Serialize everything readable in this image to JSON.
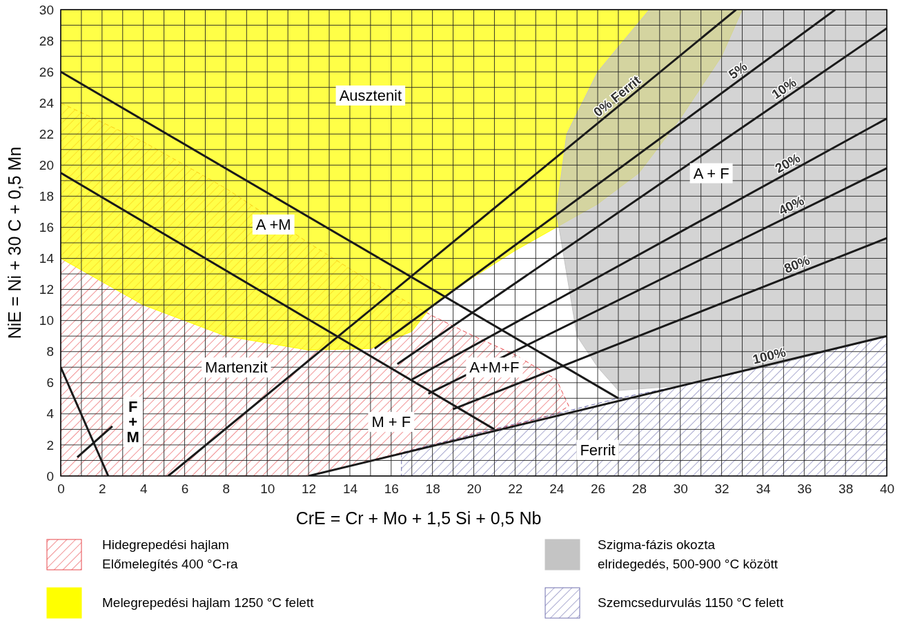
{
  "chart_data": {
    "type": "line",
    "xlabel": "CrE = Cr + Mo + 1,5 Si + 0,5 Nb",
    "ylabel": "NiE = Ni + 30 C + 0,5 Mn",
    "xlim": [
      0,
      40
    ],
    "ylim": [
      0,
      30
    ],
    "xticks": [
      0,
      {
        "value": 1,
        "label": null
      },
      2,
      {
        "value": 3,
        "label": null
      },
      4,
      {
        "value": 5,
        "label": null
      },
      6,
      {
        "value": 7,
        "label": null
      },
      8,
      {
        "value": 9,
        "label": null
      },
      10,
      {
        "value": 11,
        "label": null
      },
      12,
      {
        "value": 13,
        "label": null
      },
      14,
      {
        "value": 15,
        "label": null
      },
      16,
      {
        "value": 17,
        "label": null
      },
      18,
      {
        "value": 19,
        "label": null
      },
      20,
      {
        "value": 21,
        "label": null
      },
      22,
      {
        "value": 23,
        "label": null
      },
      24,
      {
        "value": 25,
        "label": null
      },
      26,
      {
        "value": 27,
        "label": null
      },
      28,
      {
        "value": 29,
        "label": null
      },
      30,
      {
        "value": 31,
        "label": null
      },
      32,
      {
        "value": 33,
        "label": null
      },
      34,
      {
        "value": 35,
        "label": null
      },
      36,
      {
        "value": 37,
        "label": null
      },
      38,
      {
        "value": 39,
        "label": null
      },
      40
    ],
    "yticks": [
      0,
      {
        "value": 1,
        "label": null
      },
      2,
      {
        "value": 3,
        "label": null
      },
      4,
      {
        "value": 5,
        "label": null
      },
      6,
      {
        "value": 7,
        "label": null
      },
      8,
      {
        "value": 9,
        "label": null
      },
      10,
      {
        "value": 11,
        "label": null
      },
      12,
      {
        "value": 13,
        "label": null
      },
      14,
      {
        "value": 15,
        "label": null
      },
      16,
      {
        "value": 17,
        "label": null
      },
      18,
      {
        "value": 19,
        "label": null
      },
      20,
      {
        "value": 21,
        "label": null
      },
      22,
      {
        "value": 23,
        "label": null
      },
      24,
      {
        "value": 25,
        "label": null
      },
      26,
      {
        "value": 27,
        "label": null
      },
      28,
      {
        "value": 29,
        "label": null
      },
      30
    ],
    "grid": true,
    "legend": "bottom",
    "series": [
      {
        "type": "area",
        "name": "Hidegrepedési hajlam\nElőmelegítés 400 °C-ra",
        "color": "#e8474b",
        "line_style": "dashed",
        "x": [
          0,
          12,
          15,
          18,
          20,
          22,
          24,
          24.6,
          24,
          22,
          20,
          18,
          15,
          12,
          8,
          4,
          0
        ],
        "values": [
          0,
          0,
          1,
          2,
          2.7,
          3.3,
          4,
          4.5,
          6.2,
          7.8,
          9,
          10.3,
          12.5,
          15,
          18.5,
          21.5,
          24
        ]
      },
      {
        "type": "area",
        "name": "Melegrepedési hajlam 1250 °C felett",
        "color": "#ffff00",
        "x": [
          0,
          4,
          8,
          12,
          15,
          17,
          18,
          20,
          22,
          24,
          26,
          28,
          30,
          32,
          33,
          0
        ],
        "values": [
          14,
          11,
          9,
          8.1,
          8.2,
          9.3,
          11,
          12.8,
          14.5,
          16,
          17.5,
          19.5,
          23,
          27,
          30,
          30
        ]
      },
      {
        "type": "area",
        "name": "Szigma-fázis okozta\nelridegedés, 500-900 °C között",
        "color": "#c4c4c4",
        "x": [
          28.5,
          26,
          24.5,
          24,
          25,
          26,
          27,
          30,
          35,
          40,
          40
        ],
        "values": [
          30,
          26,
          22,
          17,
          9,
          7,
          5.5,
          5.8,
          7.3,
          9,
          30
        ]
      },
      {
        "type": "area",
        "name": "Szemcsedurvulás 1150 °C felett",
        "color": "#7070b0",
        "line_style": "dashed",
        "x": [
          16.5,
          40,
          40,
          35,
          30,
          27,
          24,
          20,
          16.5
        ],
        "values": [
          0,
          0,
          9,
          7.3,
          5.8,
          5,
          4,
          2.7,
          1.5
        ]
      },
      {
        "color": "#1a1a1a",
        "x": [
          0,
          27
        ],
        "values": [
          26,
          5
        ]
      },
      {
        "color": "#1a1a1a",
        "x": [
          0,
          21
        ],
        "values": [
          19.5,
          3
        ]
      },
      {
        "color": "#1a1a1a",
        "x": [
          0,
          2.3
        ],
        "values": [
          7,
          0
        ]
      },
      {
        "color": "#1a1a1a",
        "x": [
          0.8,
          2.5
        ],
        "values": [
          1.2,
          3.2
        ]
      },
      {
        "name": "0% Ferrit",
        "color": "#1a1a1a",
        "x": [
          5.2,
          32.7
        ],
        "values": [
          0,
          30
        ]
      },
      {
        "name": "5%",
        "color": "#1a1a1a",
        "x": [
          15.2,
          37.5
        ],
        "values": [
          8.2,
          30
        ]
      },
      {
        "name": "10%",
        "color": "#1a1a1a",
        "x": [
          16.3,
          40
        ],
        "values": [
          7.2,
          28.8
        ]
      },
      {
        "name": "20%",
        "color": "#1a1a1a",
        "x": [
          17,
          40
        ],
        "values": [
          6.2,
          23
        ]
      },
      {
        "name": "40%",
        "color": "#1a1a1a",
        "x": [
          17.8,
          40
        ],
        "values": [
          5.3,
          19.8
        ]
      },
      {
        "name": "80%",
        "color": "#1a1a1a",
        "x": [
          19,
          40
        ],
        "values": [
          4.3,
          15.3
        ]
      },
      {
        "name": "100%",
        "color": "#1a1a1a",
        "x": [
          12,
          40
        ],
        "values": [
          0,
          9
        ]
      }
    ],
    "annotations": [
      "Ausztenit",
      "A +M",
      "Martenzit",
      "F\n+\nM",
      "M + F",
      "A+M+F",
      "Ferrit",
      "A + F"
    ]
  }
}
